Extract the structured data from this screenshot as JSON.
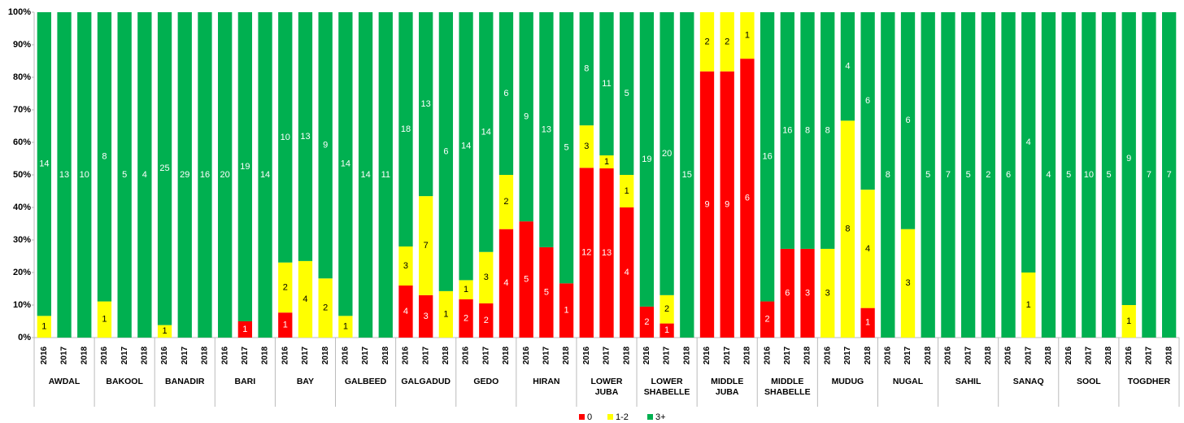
{
  "chart_data": {
    "type": "bar",
    "stacked": "percent",
    "categories": [
      "2016",
      "2017",
      "2018",
      "2016",
      "2017",
      "2018",
      "2016",
      "2017",
      "2018",
      "2016",
      "2017",
      "2018",
      "2016",
      "2017",
      "2018",
      "2016",
      "2017",
      "2018",
      "2016",
      "2017",
      "2018",
      "2016",
      "2017",
      "2018",
      "2016",
      "2017",
      "2018",
      "2016",
      "2017",
      "2018",
      "2016",
      "2017",
      "2018",
      "2016",
      "2017",
      "2018",
      "2016",
      "2017",
      "2018",
      "2016",
      "2017",
      "2018",
      "2016",
      "2017",
      "2018",
      "2016",
      "2017",
      "2018",
      "2016",
      "2017",
      "2018",
      "2016",
      "2017",
      "2018",
      "2016",
      "2017",
      "2018"
    ],
    "groups": [
      "AWDAL",
      "BAKOOL",
      "BANADIR",
      "BARI",
      "BAY",
      "GALBEED",
      "GALGADUD",
      "GEDO",
      "HIRAN",
      "LOWER JUBA",
      "LOWER SHABELLE",
      "MIDDLE JUBA",
      "MIDDLE SHABELLE",
      "MUDUG",
      "NUGAL",
      "SAHIL",
      "SANAQ",
      "SOOL",
      "TOGDHER"
    ],
    "series": [
      {
        "name": "0",
        "color": "#ff0000",
        "values": [
          null,
          null,
          null,
          null,
          null,
          null,
          null,
          null,
          null,
          null,
          1,
          null,
          1,
          null,
          null,
          null,
          null,
          null,
          4,
          3,
          null,
          2,
          2,
          4,
          5,
          5,
          1,
          12,
          13,
          4,
          2,
          1,
          null,
          9,
          9,
          6,
          2,
          6,
          3,
          null,
          null,
          1,
          null,
          null,
          null,
          null,
          null,
          null,
          null,
          null,
          null,
          null,
          null,
          null,
          null,
          null,
          null
        ]
      },
      {
        "name": "1-2",
        "color": "#ffff00",
        "values": [
          1,
          null,
          null,
          1,
          null,
          null,
          1,
          null,
          null,
          null,
          null,
          null,
          2,
          4,
          2,
          1,
          null,
          null,
          3,
          7,
          1,
          1,
          3,
          2,
          null,
          null,
          null,
          3,
          1,
          1,
          null,
          2,
          null,
          2,
          2,
          1,
          null,
          null,
          null,
          3,
          8,
          4,
          null,
          3,
          null,
          null,
          null,
          null,
          null,
          1,
          null,
          null,
          null,
          null,
          1,
          null,
          null
        ]
      },
      {
        "name": "3+",
        "color": "#00b050",
        "values": [
          14,
          13,
          10,
          8,
          5,
          4,
          25,
          29,
          16,
          20,
          19,
          14,
          10,
          13,
          9,
          14,
          14,
          11,
          18,
          13,
          6,
          14,
          14,
          6,
          9,
          13,
          5,
          8,
          11,
          5,
          19,
          20,
          15,
          null,
          null,
          null,
          16,
          16,
          8,
          8,
          4,
          6,
          8,
          6,
          5,
          7,
          5,
          2,
          6,
          4,
          4,
          5,
          10,
          5,
          9,
          7,
          7
        ]
      }
    ],
    "ylim": [
      0,
      100
    ],
    "yticks": [
      {
        "value": 0,
        "label": "0%"
      },
      {
        "value": 10,
        "label": "10%"
      },
      {
        "value": 20,
        "label": "20%"
      },
      {
        "value": 30,
        "label": "30%"
      },
      {
        "value": 40,
        "label": "40%"
      },
      {
        "value": 50,
        "label": "50%"
      },
      {
        "value": 60,
        "label": "60%"
      },
      {
        "value": 70,
        "label": "70%"
      },
      {
        "value": 80,
        "label": "80%"
      },
      {
        "value": 90,
        "label": "90%"
      },
      {
        "value": 100,
        "label": "100%"
      }
    ],
    "legend": "bottom"
  }
}
